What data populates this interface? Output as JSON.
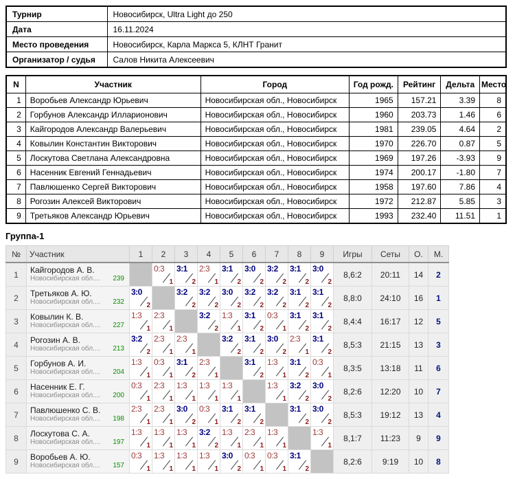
{
  "info": {
    "rows": [
      {
        "label": "Турнир",
        "value": "Новосибирск, Ultra Light до 250"
      },
      {
        "label": "Дата",
        "value": "16.11.2024"
      },
      {
        "label": "Место проведения",
        "value": "Новосибирск, Карла Маркса 5, КЛНТ Гранит"
      },
      {
        "label": "Организатор / судья",
        "value": "Салов Никита Алексеевич"
      }
    ]
  },
  "participants": {
    "headers": {
      "n": "N",
      "participant": "Участник",
      "city": "Город",
      "year": "Год рожд.",
      "rating": "Рейтинг",
      "delta": "Дельта",
      "place": "Место"
    },
    "rows": [
      {
        "n": "1",
        "name": "Воробьев Александр Юрьевич",
        "city": "Новосибирская обл., Новосибирск",
        "year": "1965",
        "rating": "157.21",
        "delta": "3.39",
        "place": "8"
      },
      {
        "n": "2",
        "name": "Горбунов Александр Илларионович",
        "city": "Новосибирская обл., Новосибирск",
        "year": "1960",
        "rating": "203.73",
        "delta": "1.46",
        "place": "6"
      },
      {
        "n": "3",
        "name": "Кайгородов Александр Валерьевич",
        "city": "Новосибирская обл., Новосибирск",
        "year": "1981",
        "rating": "239.05",
        "delta": "4.64",
        "place": "2"
      },
      {
        "n": "4",
        "name": "Ковылин Константин Викторович",
        "city": "Новосибирская обл., Новосибирск",
        "year": "1970",
        "rating": "226.70",
        "delta": "0.87",
        "place": "5"
      },
      {
        "n": "5",
        "name": "Лоскутова Светлана Александровна",
        "city": "Новосибирская обл., Новосибирск",
        "year": "1969",
        "rating": "197.26",
        "delta": "-3.93",
        "place": "9"
      },
      {
        "n": "6",
        "name": "Насенник Евгений Геннадьевич",
        "city": "Новосибирская обл., Новосибирск",
        "year": "1974",
        "rating": "200.17",
        "delta": "-1.80",
        "place": "7"
      },
      {
        "n": "7",
        "name": "Павлюшенко Сергей Викторович",
        "city": "Новосибирская обл., Новосибирск",
        "year": "1958",
        "rating": "197.60",
        "delta": "7.86",
        "place": "4"
      },
      {
        "n": "8",
        "name": "Рогозин Алексей Викторович",
        "city": "Новосибирская обл., Новосибирск",
        "year": "1972",
        "rating": "212.87",
        "delta": "5.85",
        "place": "3"
      },
      {
        "n": "9",
        "name": "Третьяков Александр Юрьевич",
        "city": "Новосибирская обл., Новосибирск",
        "year": "1993",
        "rating": "232.40",
        "delta": "11.51",
        "place": "1"
      }
    ]
  },
  "group": {
    "title": "Группа-1",
    "headers": {
      "num": "№",
      "participant": "Участник",
      "games": "Игры",
      "sets": "Сеты",
      "points": "О.",
      "place": "М."
    },
    "opponents": [
      "1",
      "2",
      "3",
      "4",
      "5",
      "6",
      "7",
      "8",
      "9"
    ],
    "rows": [
      {
        "num": "1",
        "name": "Кайгородов А. В.",
        "region": "Новосибирская обл....",
        "rating": "239",
        "cells": [
          null,
          {
            "score": "0:3",
            "pts": "1",
            "win": false
          },
          {
            "score": "3:1",
            "pts": "2",
            "win": true
          },
          {
            "score": "2:3",
            "pts": "1",
            "win": false
          },
          {
            "score": "3:1",
            "pts": "2",
            "win": true
          },
          {
            "score": "3:0",
            "pts": "2",
            "win": true
          },
          {
            "score": "3:2",
            "pts": "2",
            "win": true
          },
          {
            "score": "3:1",
            "pts": "2",
            "win": true
          },
          {
            "score": "3:0",
            "pts": "2",
            "win": true
          }
        ],
        "games": "8,6:2",
        "sets": "20:11",
        "points": "14",
        "place": "2"
      },
      {
        "num": "2",
        "name": "Третьяков А. Ю.",
        "region": "Новосибирская обл....",
        "rating": "232",
        "cells": [
          {
            "score": "3:0",
            "pts": "2",
            "win": true
          },
          null,
          {
            "score": "3:2",
            "pts": "2",
            "win": true
          },
          {
            "score": "3:2",
            "pts": "2",
            "win": true
          },
          {
            "score": "3:0",
            "pts": "2",
            "win": true
          },
          {
            "score": "3:2",
            "pts": "2",
            "win": true
          },
          {
            "score": "3:2",
            "pts": "2",
            "win": true
          },
          {
            "score": "3:1",
            "pts": "2",
            "win": true
          },
          {
            "score": "3:1",
            "pts": "2",
            "win": true
          }
        ],
        "games": "8,8:0",
        "sets": "24:10",
        "points": "16",
        "place": "1"
      },
      {
        "num": "3",
        "name": "Ковылин К. В.",
        "region": "Новосибирская обл....",
        "rating": "227",
        "cells": [
          {
            "score": "1:3",
            "pts": "1",
            "win": false
          },
          {
            "score": "2:3",
            "pts": "1",
            "win": false
          },
          null,
          {
            "score": "3:2",
            "pts": "2",
            "win": true
          },
          {
            "score": "1:3",
            "pts": "1",
            "win": false
          },
          {
            "score": "3:1",
            "pts": "2",
            "win": true
          },
          {
            "score": "0:3",
            "pts": "1",
            "win": false
          },
          {
            "score": "3:1",
            "pts": "2",
            "win": true
          },
          {
            "score": "3:1",
            "pts": "2",
            "win": true
          }
        ],
        "games": "8,4:4",
        "sets": "16:17",
        "points": "12",
        "place": "5"
      },
      {
        "num": "4",
        "name": "Рогозин А. В.",
        "region": "Новосибирская обл....",
        "rating": "213",
        "cells": [
          {
            "score": "3:2",
            "pts": "2",
            "win": true
          },
          {
            "score": "2:3",
            "pts": "1",
            "win": false
          },
          {
            "score": "2:3",
            "pts": "1",
            "win": false
          },
          null,
          {
            "score": "3:2",
            "pts": "2",
            "win": true
          },
          {
            "score": "3:1",
            "pts": "2",
            "win": true
          },
          {
            "score": "3:0",
            "pts": "2",
            "win": true
          },
          {
            "score": "2:3",
            "pts": "1",
            "win": false
          },
          {
            "score": "3:1",
            "pts": "2",
            "win": true
          }
        ],
        "games": "8,5:3",
        "sets": "21:15",
        "points": "13",
        "place": "3"
      },
      {
        "num": "5",
        "name": "Горбунов А. И.",
        "region": "Новосибирская обл....",
        "rating": "204",
        "cells": [
          {
            "score": "1:3",
            "pts": "1",
            "win": false
          },
          {
            "score": "0:3",
            "pts": "1",
            "win": false
          },
          {
            "score": "3:1",
            "pts": "2",
            "win": true
          },
          {
            "score": "2:3",
            "pts": "1",
            "win": false
          },
          null,
          {
            "score": "3:1",
            "pts": "2",
            "win": true
          },
          {
            "score": "1:3",
            "pts": "1",
            "win": false
          },
          {
            "score": "3:1",
            "pts": "2",
            "win": true
          },
          {
            "score": "0:3",
            "pts": "1",
            "win": false
          }
        ],
        "games": "8,3:5",
        "sets": "13:18",
        "points": "11",
        "place": "6"
      },
      {
        "num": "6",
        "name": "Насенник Е. Г.",
        "region": "Новосибирская обл....",
        "rating": "200",
        "cells": [
          {
            "score": "0:3",
            "pts": "1",
            "win": false
          },
          {
            "score": "2:3",
            "pts": "1",
            "win": false
          },
          {
            "score": "1:3",
            "pts": "1",
            "win": false
          },
          {
            "score": "1:3",
            "pts": "1",
            "win": false
          },
          {
            "score": "1:3",
            "pts": "1",
            "win": false
          },
          null,
          {
            "score": "1:3",
            "pts": "1",
            "win": false
          },
          {
            "score": "3:2",
            "pts": "2",
            "win": true
          },
          {
            "score": "3:0",
            "pts": "2",
            "win": true
          }
        ],
        "games": "8,2:6",
        "sets": "12:20",
        "points": "10",
        "place": "7"
      },
      {
        "num": "7",
        "name": "Павлюшенко С. В.",
        "region": "Новосибирская обл....",
        "rating": "198",
        "cells": [
          {
            "score": "2:3",
            "pts": "1",
            "win": false
          },
          {
            "score": "2:3",
            "pts": "1",
            "win": false
          },
          {
            "score": "3:0",
            "pts": "2",
            "win": true
          },
          {
            "score": "0:3",
            "pts": "1",
            "win": false
          },
          {
            "score": "3:1",
            "pts": "2",
            "win": true
          },
          {
            "score": "3:1",
            "pts": "2",
            "win": true
          },
          null,
          {
            "score": "3:1",
            "pts": "2",
            "win": true
          },
          {
            "score": "3:0",
            "pts": "2",
            "win": true
          }
        ],
        "games": "8,5:3",
        "sets": "19:12",
        "points": "13",
        "place": "4"
      },
      {
        "num": "8",
        "name": "Лоскутова С. А.",
        "region": "Новосибирская обл....",
        "rating": "197",
        "cells": [
          {
            "score": "1:3",
            "pts": "1",
            "win": false
          },
          {
            "score": "1:3",
            "pts": "1",
            "win": false
          },
          {
            "score": "1:3",
            "pts": "1",
            "win": false
          },
          {
            "score": "3:2",
            "pts": "2",
            "win": true
          },
          {
            "score": "1:3",
            "pts": "1",
            "win": false
          },
          {
            "score": "2:3",
            "pts": "1",
            "win": false
          },
          {
            "score": "1:3",
            "pts": "1",
            "win": false
          },
          null,
          {
            "score": "1:3",
            "pts": "1",
            "win": false
          }
        ],
        "games": "8,1:7",
        "sets": "11:23",
        "points": "9",
        "place": "9"
      },
      {
        "num": "9",
        "name": "Воробьев А. Ю.",
        "region": "Новосибирская обл....",
        "rating": "157",
        "cells": [
          {
            "score": "0:3",
            "pts": "1",
            "win": false
          },
          {
            "score": "1:3",
            "pts": "1",
            "win": false
          },
          {
            "score": "1:3",
            "pts": "1",
            "win": false
          },
          {
            "score": "1:3",
            "pts": "1",
            "win": false
          },
          {
            "score": "3:0",
            "pts": "2",
            "win": true
          },
          {
            "score": "0:3",
            "pts": "1",
            "win": false
          },
          {
            "score": "0:3",
            "pts": "1",
            "win": false
          },
          {
            "score": "3:1",
            "pts": "2",
            "win": true
          },
          null
        ],
        "games": "8,2:6",
        "sets": "9:19",
        "points": "10",
        "place": "8"
      }
    ]
  },
  "colors": {
    "win_score": "#000080",
    "loss_score": "#9c3a3a",
    "points_gained": "#8b1a1a",
    "rating_green": "#089000",
    "place_accent": "#00157f",
    "self_cell": "#c3c3c3",
    "group_header_bg": "#e7e7e7"
  }
}
